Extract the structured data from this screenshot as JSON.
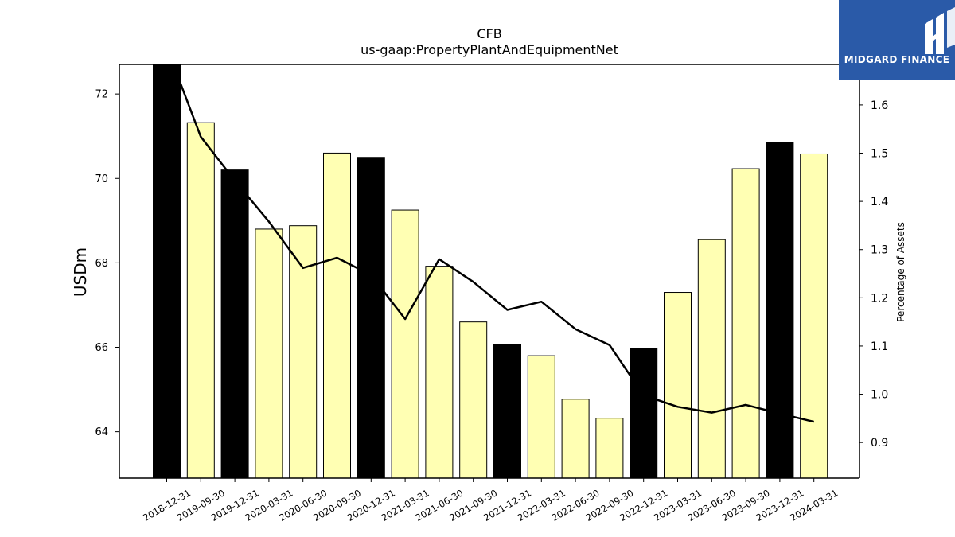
{
  "chart_data": {
    "type": "bar",
    "title": "CFB",
    "subtitle": "us-gaap:PropertyPlantAndEquipmentNet",
    "ylabel": "USDm",
    "ylabel_right": "Percentage of Assets",
    "ylim": [
      62.9,
      72.7
    ],
    "ylim_right": [
      0.826,
      1.684
    ],
    "yticks": [
      64,
      66,
      68,
      70,
      72
    ],
    "yticks_right": [
      0.9,
      1.0,
      1.1,
      1.2,
      1.3,
      1.4,
      1.5,
      1.6
    ],
    "categories": [
      "2018-12-31",
      "2019-09-30",
      "2019-12-31",
      "2020-03-31",
      "2020-06-30",
      "2020-09-30",
      "2020-12-31",
      "2021-03-31",
      "2021-06-30",
      "2021-09-30",
      "2021-12-31",
      "2022-03-31",
      "2022-06-30",
      "2022-09-30",
      "2022-12-31",
      "2023-03-31",
      "2023-06-30",
      "2023-09-30",
      "2023-12-31",
      "2024-03-31"
    ],
    "series": [
      {
        "type": "bar",
        "axis": "left",
        "values": [
          72.75,
          71.32,
          70.2,
          68.8,
          68.88,
          70.6,
          70.5,
          69.25,
          67.92,
          66.6,
          66.07,
          65.8,
          64.77,
          64.32,
          65.97,
          67.3,
          68.55,
          70.23,
          70.86,
          70.58
        ]
      },
      {
        "type": "line",
        "axis": "right",
        "values": [
          1.72,
          1.534,
          1.443,
          1.358,
          1.262,
          1.283,
          1.247,
          1.156,
          1.28,
          1.233,
          1.175,
          1.192,
          1.135,
          1.102,
          0.998,
          0.974,
          0.962,
          0.978,
          0.96,
          0.943
        ]
      }
    ],
    "bar_colors": [
      "#000000",
      "#ffffb3",
      "#000000",
      "#ffffb3",
      "#ffffb3",
      "#ffffb3",
      "#000000",
      "#ffffb3",
      "#ffffb3",
      "#ffffb3",
      "#000000",
      "#ffffb3",
      "#ffffb3",
      "#ffffb3",
      "#000000",
      "#ffffb3",
      "#ffffb3",
      "#ffffb3",
      "#000000",
      "#ffffb3"
    ],
    "line_color": "#000000",
    "grid": false
  },
  "logo": {
    "text": "MIDGARD FINANCE",
    "background": "#2a5aa8"
  }
}
